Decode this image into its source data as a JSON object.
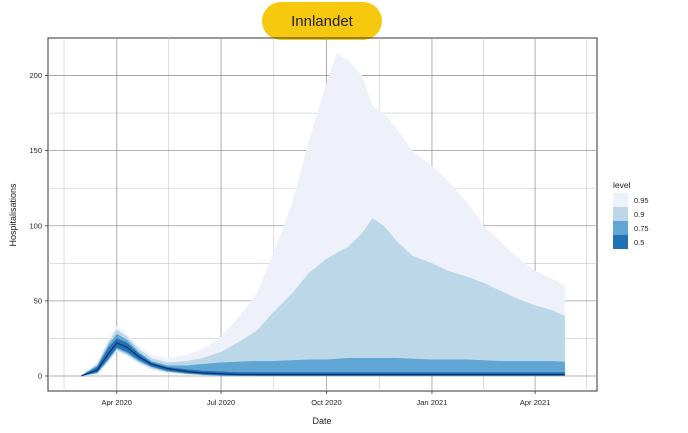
{
  "header": {
    "title": "Innlandet",
    "title_bg": "#f6c90e"
  },
  "chart_data": {
    "type": "area",
    "title": "Innlandet",
    "xlabel": "Date",
    "ylabel": "Hospitalisations",
    "x_ticks": [
      "Apr 2020",
      "Jul 2020",
      "Oct 2020",
      "Jan 2021",
      "Apr 2021"
    ],
    "y_ticks": [
      0,
      50,
      100,
      150,
      200
    ],
    "xlim": [
      "2020-02-01",
      "2021-05-25"
    ],
    "ylim": [
      -10,
      225
    ],
    "grid": true,
    "legend": {
      "title": "level",
      "position": "right",
      "levels": [
        {
          "label": "0.95",
          "color": "#eef1fa"
        },
        {
          "label": "0.9",
          "color": "#bcd8e8"
        },
        {
          "label": "0.75",
          "color": "#5fa6d4"
        },
        {
          "label": "0.5",
          "color": "#2171b5"
        }
      ]
    },
    "x": [
      "2020-03-01",
      "2020-03-15",
      "2020-03-25",
      "2020-04-01",
      "2020-04-10",
      "2020-04-20",
      "2020-05-01",
      "2020-05-15",
      "2020-06-01",
      "2020-06-15",
      "2020-07-01",
      "2020-07-15",
      "2020-08-01",
      "2020-08-15",
      "2020-09-01",
      "2020-09-15",
      "2020-10-01",
      "2020-10-10",
      "2020-10-20",
      "2020-11-01",
      "2020-11-10",
      "2020-11-20",
      "2020-12-01",
      "2020-12-15",
      "2021-01-01",
      "2021-01-15",
      "2021-02-01",
      "2021-02-15",
      "2021-03-01",
      "2021-03-15",
      "2021-04-01",
      "2021-04-15",
      "2021-04-27"
    ],
    "median": [
      0,
      4,
      15,
      22,
      19,
      13,
      8,
      5,
      3,
      2,
      1.5,
      1,
      1,
      1,
      1,
      1,
      1,
      1,
      1,
      1,
      1,
      1,
      1,
      1,
      1,
      1,
      1,
      1,
      1,
      1,
      1,
      1,
      1
    ],
    "series": [
      {
        "name": "0.95",
        "lower": [
          0,
          1,
          9,
          16,
          13,
          8,
          4,
          2,
          1,
          0.5,
          0,
          0,
          0,
          0,
          0,
          0,
          0,
          0,
          0,
          0,
          0,
          0,
          0,
          0,
          0,
          0,
          0,
          0,
          0,
          0,
          0,
          0,
          0
        ],
        "upper": [
          0.5,
          9,
          25,
          33,
          28,
          20,
          14,
          12,
          14,
          18,
          26,
          38,
          55,
          80,
          115,
          155,
          195,
          215,
          210,
          200,
          180,
          175,
          165,
          150,
          140,
          130,
          115,
          100,
          90,
          80,
          70,
          65,
          60
        ]
      },
      {
        "name": "0.9",
        "lower": [
          0,
          1.5,
          10,
          17,
          14,
          9,
          5,
          2.5,
          1.2,
          0.6,
          0,
          0,
          0,
          0,
          0,
          0,
          0,
          0,
          0,
          0,
          0,
          0,
          0,
          0,
          0,
          0,
          0,
          0,
          0,
          0,
          0,
          0,
          0
        ],
        "upper": [
          0.4,
          8,
          23,
          31,
          26,
          18,
          12,
          9,
          10,
          12,
          16,
          22,
          30,
          42,
          55,
          68,
          78,
          82,
          86,
          95,
          105,
          100,
          90,
          80,
          75,
          70,
          66,
          62,
          57,
          52,
          47,
          44,
          40
        ]
      },
      {
        "name": "0.75",
        "lower": [
          0,
          2,
          11,
          18,
          15,
          10,
          6,
          3,
          1.5,
          0.8,
          0,
          0,
          0,
          0,
          0,
          0,
          0,
          0,
          0,
          0,
          0,
          0,
          0,
          0,
          0,
          0,
          0,
          0,
          0,
          0,
          0,
          0,
          0
        ],
        "upper": [
          0.3,
          7,
          21,
          28,
          24,
          16,
          10,
          7,
          7,
          8,
          9,
          9.5,
          10,
          10,
          10.5,
          11,
          11,
          11.5,
          12,
          12,
          12,
          12,
          12,
          11.5,
          11,
          11,
          11,
          10.5,
          10,
          10,
          10,
          10,
          9.5
        ]
      },
      {
        "name": "0.5",
        "lower": [
          0,
          2.5,
          12,
          19,
          16,
          11,
          6.5,
          3.5,
          2,
          1,
          0.5,
          0.3,
          0.2,
          0.2,
          0.2,
          0.2,
          0.2,
          0.2,
          0.2,
          0.2,
          0.2,
          0.2,
          0.2,
          0.2,
          0.2,
          0.2,
          0.2,
          0.2,
          0.2,
          0.2,
          0.2,
          0.2,
          0.2
        ],
        "upper": [
          0.2,
          6,
          19,
          25,
          22,
          15,
          9,
          6,
          4.5,
          3.5,
          3,
          2.5,
          2.5,
          2.5,
          2.5,
          2.5,
          2.5,
          2.5,
          2.5,
          2.5,
          2.5,
          2.5,
          2.5,
          2.5,
          2.5,
          2.5,
          2.5,
          2.5,
          2.5,
          2.5,
          2.5,
          2.5,
          2.5
        ]
      }
    ]
  }
}
